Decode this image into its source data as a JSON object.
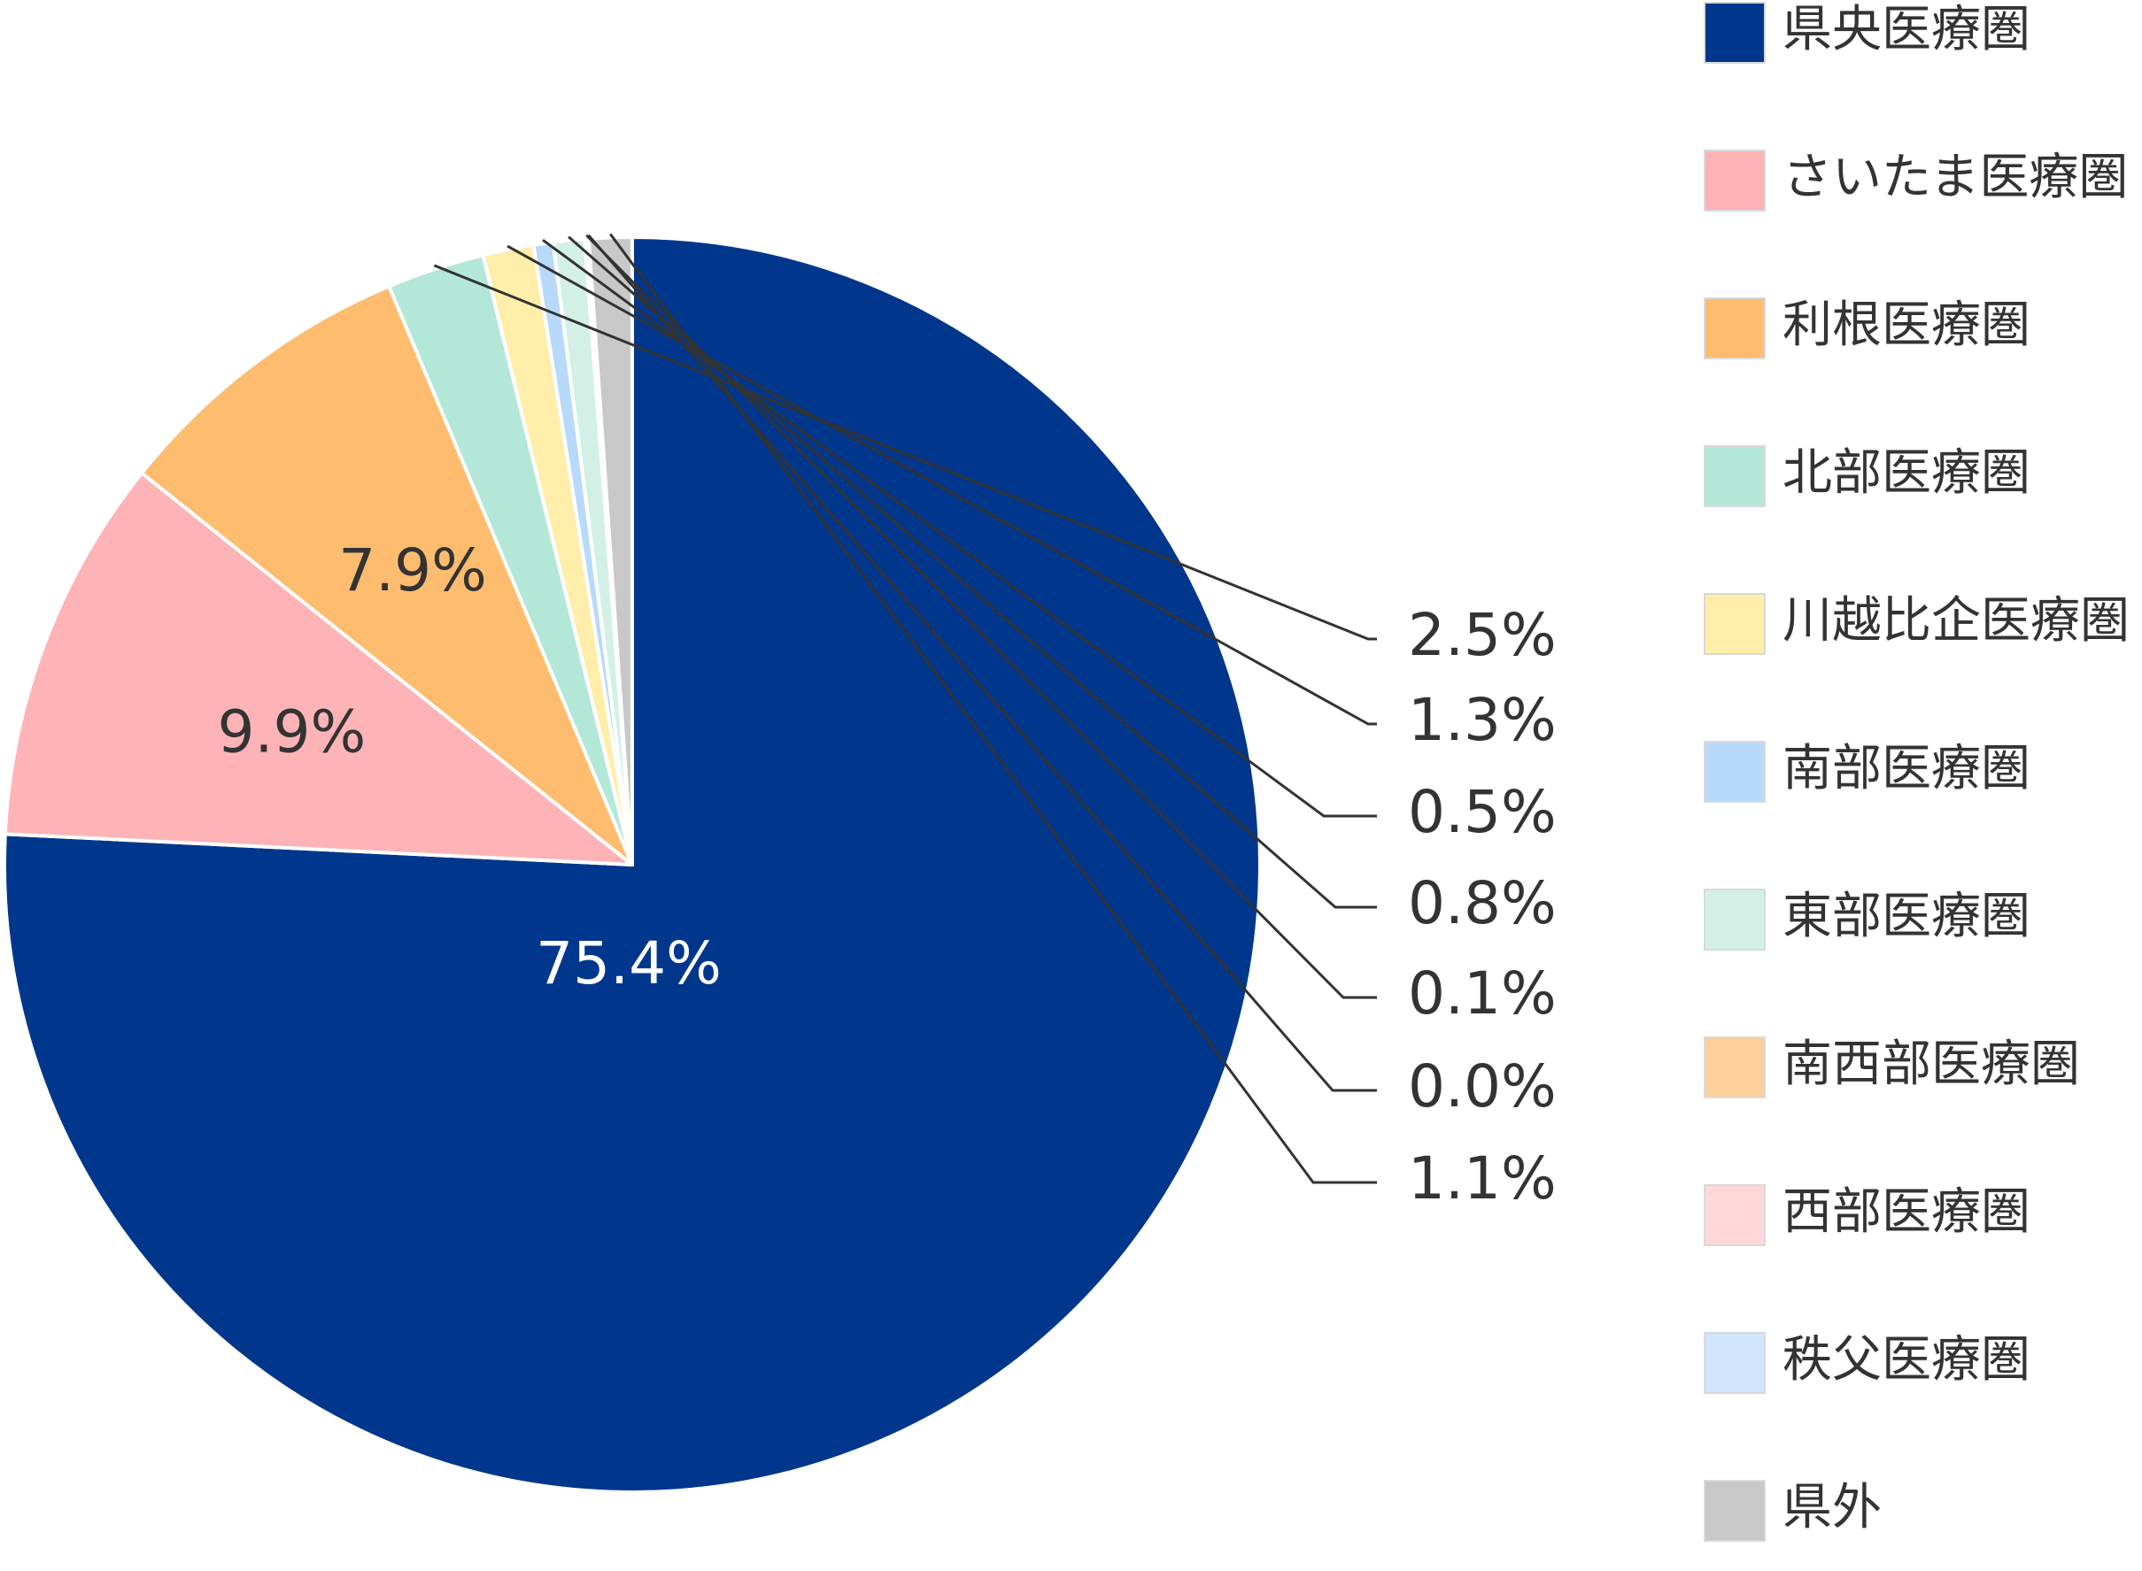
{
  "chart_data": {
    "type": "pie",
    "start_angle_deg": 0,
    "direction": "clockwise",
    "slices": [
      {
        "name": "県央医療圏",
        "value": 75.4,
        "label": "75.4%",
        "color": "#00378c",
        "label_mode": "inside",
        "label_color": "#ffffff"
      },
      {
        "name": "さいたま医療圏",
        "value": 9.9,
        "label": "9.9%",
        "color": "#feb3b6",
        "label_mode": "inside"
      },
      {
        "name": "利根医療圏",
        "value": 7.9,
        "label": "7.9%",
        "color": "#febc6e",
        "label_mode": "inside"
      },
      {
        "name": "北部医療圏",
        "value": 2.5,
        "label": "2.5%",
        "color": "#b3e8d8",
        "label_mode": "callout"
      },
      {
        "name": "川越比企医療圏",
        "value": 1.3,
        "label": "1.3%",
        "color": "#feeeaa",
        "label_mode": "callout"
      },
      {
        "name": "南部医療圏",
        "value": 0.5,
        "label": "0.5%",
        "color": "#b8dafa",
        "label_mode": "callout"
      },
      {
        "name": "東部医療圏",
        "value": 0.8,
        "label": "0.8%",
        "color": "#d3f0e7",
        "label_mode": "callout"
      },
      {
        "name": "南西部医療圏",
        "value": 0.1,
        "label": "0.1%",
        "color": "#fecf9a",
        "label_mode": "callout"
      },
      {
        "name": "西部医療圏",
        "value": 0.0,
        "label": "0.0%",
        "color": "#fed7d9",
        "label_mode": "callout"
      },
      {
        "name": "秩父医療圏",
        "value": 0.0,
        "label": null,
        "color": "#cfe6fc",
        "label_mode": "none"
      },
      {
        "name": "県外",
        "value": 1.1,
        "label": "1.1%",
        "color": "#c8c8c8",
        "label_mode": "callout"
      }
    ],
    "legend": {
      "position": "right",
      "items": [
        "県央医療圏",
        "さいたま医療圏",
        "利根医療圏",
        "北部医療圏",
        "川越比企医療圏",
        "南部医療圏",
        "東部医療圏",
        "南西部医療圏",
        "西部医療圏",
        "秩父医療圏",
        "県外"
      ]
    }
  }
}
